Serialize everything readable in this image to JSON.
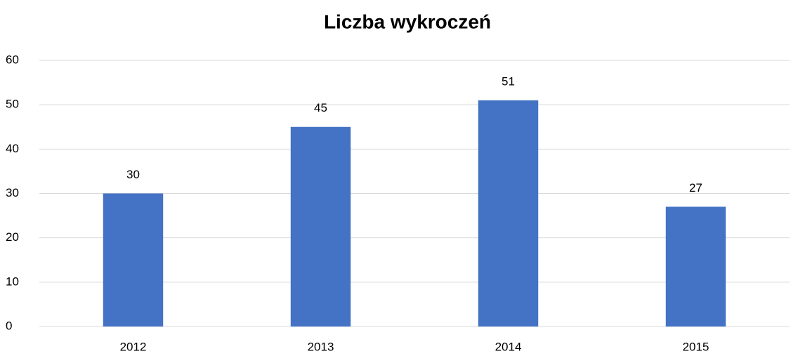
{
  "chart_data": {
    "type": "bar",
    "title": "Liczba wykroczeń",
    "categories": [
      "2012",
      "2013",
      "2014",
      "2015"
    ],
    "values": [
      30,
      45,
      51,
      27
    ],
    "color": "#4472c4",
    "ylim": [
      0,
      60
    ],
    "yticks": [
      0,
      10,
      20,
      30,
      40,
      50,
      60
    ],
    "grid": true
  }
}
